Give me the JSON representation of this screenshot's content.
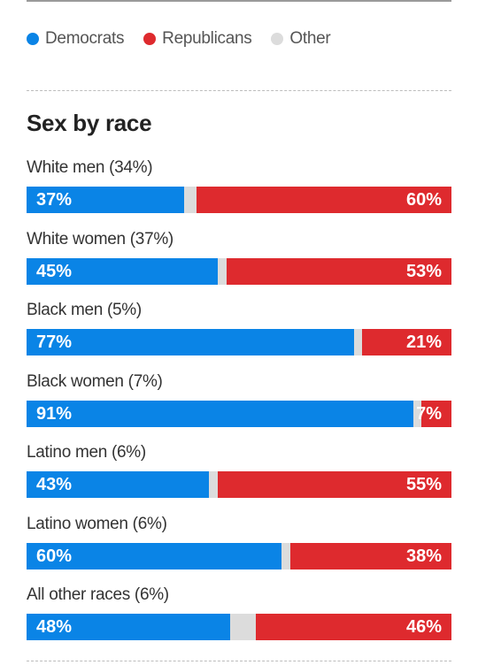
{
  "colors": {
    "democrats": "#0a84e6",
    "republicans": "#de2a2e",
    "other": "#dcdcdc"
  },
  "legend": [
    {
      "label": "Democrats",
      "color": "#0a84e6"
    },
    {
      "label": "Republicans",
      "color": "#de2a2e"
    },
    {
      "label": "Other",
      "color": "#dcdcdc"
    }
  ],
  "chart_data": {
    "type": "bar",
    "orientation": "horizontal",
    "stacked": true,
    "title": "Sex by race",
    "categories": [
      "White men (34%)",
      "White women (37%)",
      "Black men (5%)",
      "Black women (7%)",
      "Latino men (6%)",
      "Latino women (6%)",
      "All other races (6%)"
    ],
    "series": [
      {
        "name": "Democrats",
        "color": "#0a84e6",
        "values": [
          37,
          45,
          77,
          91,
          43,
          60,
          48
        ]
      },
      {
        "name": "Republicans",
        "color": "#de2a2e",
        "values": [
          60,
          53,
          21,
          7,
          55,
          38,
          46
        ]
      },
      {
        "name": "Other",
        "color": "#dcdcdc",
        "values": [
          3,
          2,
          2,
          2,
          2,
          2,
          6
        ]
      }
    ],
    "value_labels": {
      "democrats": [
        "37%",
        "45%",
        "77%",
        "91%",
        "43%",
        "60%",
        "48%"
      ],
      "republicans": [
        "60%",
        "53%",
        "21%",
        "7%",
        "55%",
        "38%",
        "46%"
      ]
    },
    "xlim": [
      0,
      100
    ],
    "legend_position": "top-left",
    "grid": false
  }
}
